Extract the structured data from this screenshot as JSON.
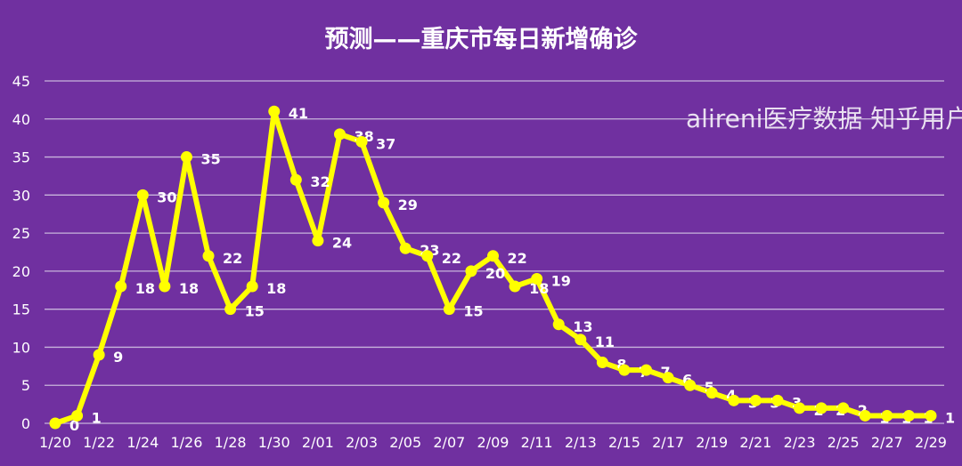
{
  "chart_data": {
    "type": "line",
    "title": "预测——重庆市每日新增确诊",
    "xlabel": "",
    "ylabel": "",
    "ylim": [
      0,
      45
    ],
    "yticks": [
      0,
      5,
      10,
      15,
      20,
      25,
      30,
      35,
      40,
      45
    ],
    "grid": true,
    "x": [
      "1/20",
      "1/21",
      "1/22",
      "1/23",
      "1/24",
      "1/25",
      "1/26",
      "1/27",
      "1/28",
      "1/29",
      "1/30",
      "1/31",
      "2/01",
      "2/02",
      "2/03",
      "2/04",
      "2/05",
      "2/06",
      "2/07",
      "2/08",
      "2/09",
      "2/10",
      "2/11",
      "2/12",
      "2/13",
      "2/14",
      "2/15",
      "2/16",
      "2/17",
      "2/18",
      "2/19",
      "2/20",
      "2/21",
      "2/22",
      "2/23",
      "2/24",
      "2/25",
      "2/26",
      "2/27",
      "2/28",
      "2/29"
    ],
    "xtick_labels": [
      "1/20",
      "1/22",
      "1/24",
      "1/26",
      "1/28",
      "1/30",
      "2/01",
      "2/03",
      "2/05",
      "2/07",
      "2/09",
      "2/11",
      "2/13",
      "2/15",
      "2/17",
      "2/19",
      "2/21",
      "2/23",
      "2/25",
      "2/27",
      "2/29"
    ],
    "values": [
      0,
      1,
      9,
      18,
      30,
      18,
      35,
      22,
      15,
      18,
      41,
      32,
      24,
      38,
      37,
      29,
      23,
      22,
      15,
      20,
      22,
      18,
      19,
      13,
      11,
      8,
      7,
      7,
      6,
      5,
      4,
      3,
      3,
      3,
      2,
      2,
      2,
      1,
      1,
      1,
      1
    ],
    "colors": {
      "background": "#7030a0",
      "line": "#ffff00",
      "grid": "#c8b4dc",
      "text": "#ffffff"
    }
  },
  "watermark": "alireni医疗数据 知乎用户"
}
